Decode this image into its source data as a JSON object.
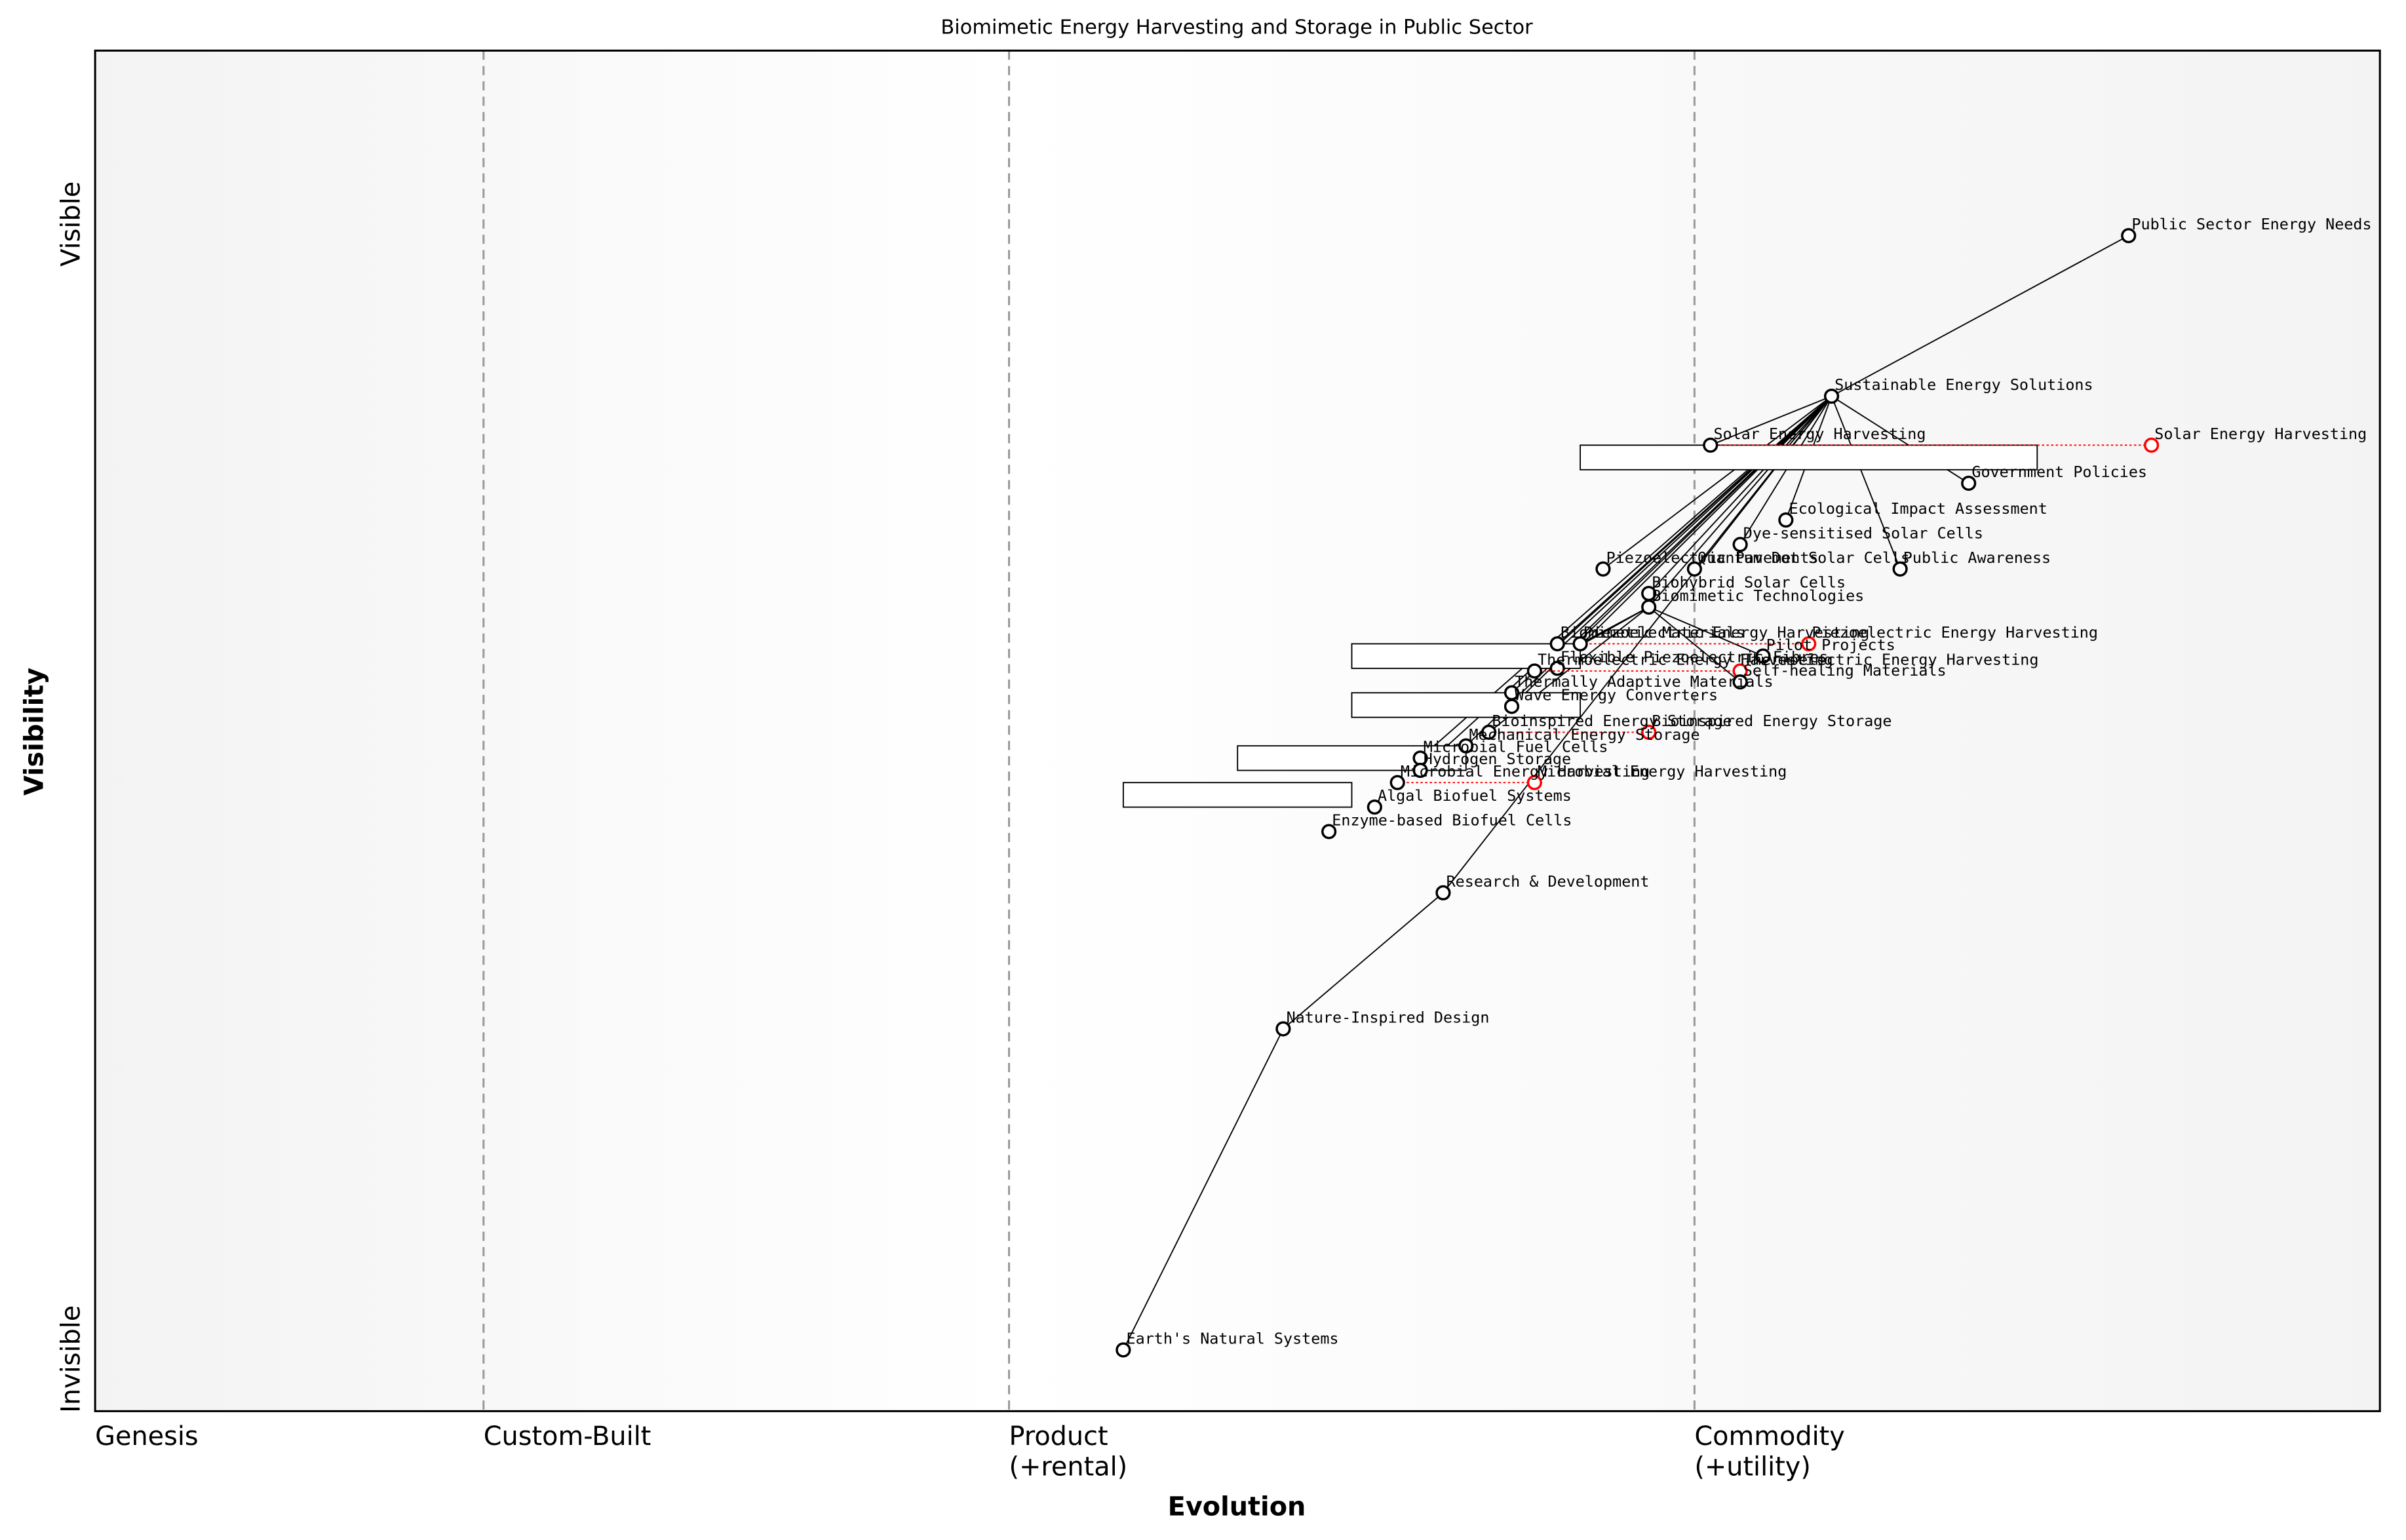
{
  "title": "Biomimetic Energy Harvesting and Storage in Public Sector",
  "x_axis_label": "Evolution",
  "y_axis_label": "Visibility",
  "y_top_label": "Visible",
  "y_bottom_label": "Invisible",
  "stages": [
    {
      "value": 0,
      "label": [
        "Genesis"
      ]
    },
    {
      "value": 0.17,
      "label": [
        "Custom-Built"
      ]
    },
    {
      "value": 0.4,
      "label": [
        "Product",
        "(+rental)"
      ]
    },
    {
      "value": 0.7,
      "label": [
        "Commodity",
        "(+utility)"
      ]
    }
  ],
  "nodes": [
    {
      "label": "Public Sector Energy Needs",
      "evolution": 0.89,
      "visibility": 0.864
    },
    {
      "label": "Sustainable Energy Solutions",
      "evolution": 0.76,
      "visibility": 0.746
    },
    {
      "label": "Solar Energy Harvesting",
      "evolution": 0.707,
      "visibility": 0.71,
      "evolve": 0.9,
      "pipeline": [
        0.65,
        0.85
      ]
    },
    {
      "label": "Government Policies",
      "evolution": 0.82,
      "visibility": 0.682
    },
    {
      "label": "Ecological Impact Assessment",
      "evolution": 0.74,
      "visibility": 0.655
    },
    {
      "label": "Dye-sensitised Solar Cells",
      "evolution": 0.72,
      "visibility": 0.637
    },
    {
      "label": "Piezoelectric Pavements",
      "evolution": 0.66,
      "visibility": 0.619
    },
    {
      "label": "Quantum Dot Solar Cells",
      "evolution": 0.7,
      "visibility": 0.619
    },
    {
      "label": "Public Awareness",
      "evolution": 0.79,
      "visibility": 0.619
    },
    {
      "label": "Biohybrid Solar Cells",
      "evolution": 0.68,
      "visibility": 0.601
    },
    {
      "label": "Biomimetic Technologies",
      "evolution": 0.68,
      "visibility": 0.591
    },
    {
      "label": "Biomimetic Materials",
      "evolution": 0.64,
      "visibility": 0.564,
      "pipeline": [
        0.55,
        0.65
      ]
    },
    {
      "label": "Piezoelectric Energy Harvesting",
      "evolution": 0.65,
      "visibility": 0.564,
      "evolve": 0.75
    },
    {
      "label": "Pilot Projects",
      "evolution": 0.73,
      "visibility": 0.555
    },
    {
      "label": "Flexible Piezoelectric Fibres",
      "evolution": 0.64,
      "visibility": 0.546
    },
    {
      "label": "Thermoelectric Energy Harvesting",
      "evolution": 0.63,
      "visibility": 0.544,
      "evolve": 0.72
    },
    {
      "label": "Self-healing Materials",
      "evolution": 0.72,
      "visibility": 0.536
    },
    {
      "label": "Thermally Adaptive Materials",
      "evolution": 0.62,
      "visibility": 0.528,
      "pipeline": [
        0.55,
        0.65
      ]
    },
    {
      "label": "Wave Energy Converters",
      "evolution": 0.62,
      "visibility": 0.518
    },
    {
      "label": "Bioinspired Energy Storage",
      "evolution": 0.61,
      "visibility": 0.499,
      "evolve": 0.68
    },
    {
      "label": "Mechanical Energy Storage",
      "evolution": 0.6,
      "visibility": 0.489,
      "pipeline": [
        0.5,
        0.6
      ]
    },
    {
      "label": "Microbial Fuel Cells",
      "evolution": 0.58,
      "visibility": 0.48
    },
    {
      "label": "Hydrogen Storage",
      "evolution": 0.58,
      "visibility": 0.471
    },
    {
      "label": "Microbial Energy Harvesting",
      "evolution": 0.57,
      "visibility": 0.462,
      "evolve": 0.63,
      "pipeline": [
        0.45,
        0.55
      ]
    },
    {
      "label": "Algal Biofuel Systems",
      "evolution": 0.56,
      "visibility": 0.444
    },
    {
      "label": "Enzyme-based Biofuel Cells",
      "evolution": 0.54,
      "visibility": 0.426
    },
    {
      "label": "Research & Development",
      "evolution": 0.59,
      "visibility": 0.381
    },
    {
      "label": "Nature-Inspired Design",
      "evolution": 0.52,
      "visibility": 0.281
    },
    {
      "label": "Earth's Natural Systems",
      "evolution": 0.45,
      "visibility": 0.045
    }
  ],
  "links": [
    [
      0,
      1
    ],
    [
      1,
      2
    ],
    [
      1,
      3
    ],
    [
      1,
      4
    ],
    [
      1,
      5
    ],
    [
      1,
      6
    ],
    [
      1,
      7
    ],
    [
      1,
      8
    ],
    [
      1,
      9
    ],
    [
      1,
      10
    ],
    [
      1,
      11
    ],
    [
      1,
      14
    ],
    [
      1,
      17
    ],
    [
      1,
      18
    ],
    [
      1,
      20
    ],
    [
      1,
      21
    ],
    [
      1,
      22
    ],
    [
      1,
      26
    ],
    [
      10,
      12
    ],
    [
      10,
      13
    ],
    [
      10,
      15
    ],
    [
      10,
      16
    ],
    [
      10,
      19
    ],
    [
      26,
      27
    ],
    [
      27,
      28
    ]
  ]
}
